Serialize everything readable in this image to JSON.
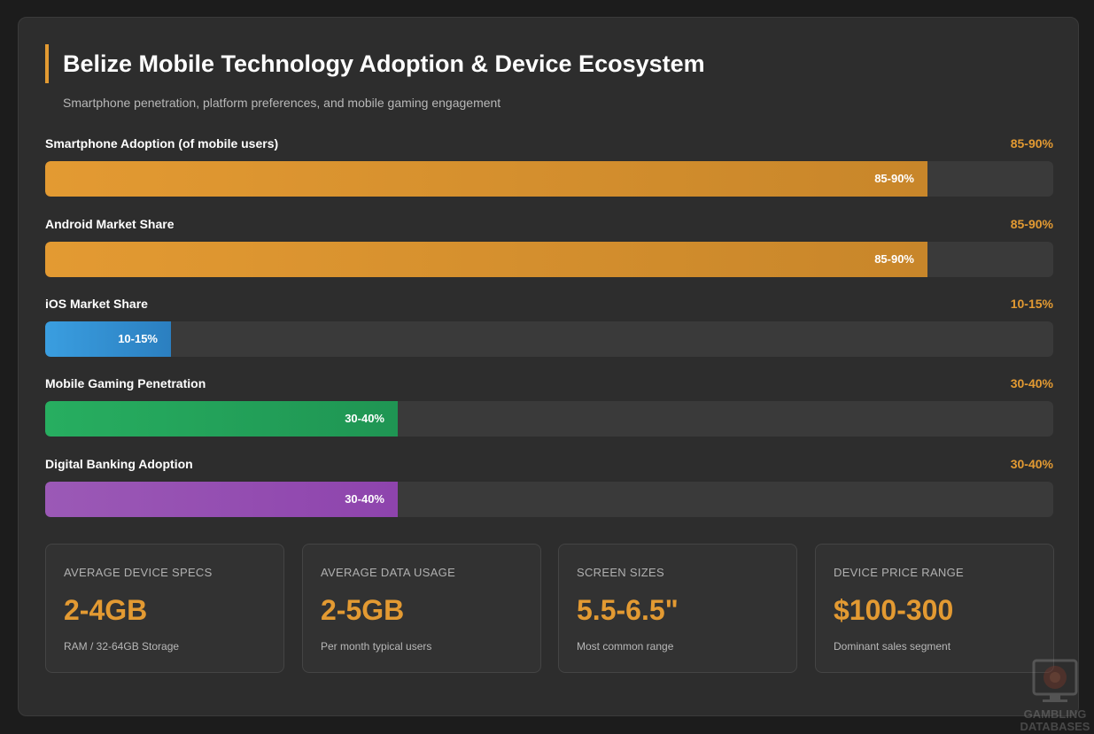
{
  "title": "Belize Mobile Technology Adoption & Device Ecosystem",
  "subtitle": "Smartphone penetration, platform preferences, and mobile gaming engagement",
  "chart_data": {
    "type": "bar",
    "orientation": "horizontal",
    "xlim": [
      0,
      100
    ],
    "unit": "%",
    "categories": [
      "Smartphone Adoption (of mobile users)",
      "Android Market Share",
      "iOS Market Share",
      "Mobile Gaming Penetration",
      "Digital Banking Adoption"
    ],
    "labels": [
      "85-90%",
      "85-90%",
      "10-15%",
      "30-40%",
      "30-40%"
    ],
    "values": [
      87.5,
      87.5,
      12.5,
      35,
      35
    ],
    "colors": [
      [
        "#e39a32",
        "#c8862a"
      ],
      [
        "#e39a32",
        "#c8862a"
      ],
      [
        "#3a9ee0",
        "#2b7fc0"
      ],
      [
        "#27ae60",
        "#1f9553"
      ],
      [
        "#9b59b6",
        "#8e44ad"
      ]
    ]
  },
  "stats": [
    {
      "label": "AVERAGE DEVICE SPECS",
      "value": "2-4GB",
      "sub": "RAM / 32-64GB Storage"
    },
    {
      "label": "AVERAGE DATA USAGE",
      "value": "2-5GB",
      "sub": "Per month typical users"
    },
    {
      "label": "SCREEN SIZES",
      "value": "5.5-6.5\"",
      "sub": "Most common range"
    },
    {
      "label": "DEVICE PRICE RANGE",
      "value": "$100-300",
      "sub": "Dominant sales segment"
    }
  ],
  "watermark": {
    "line1": "GAMBLING",
    "line2": "DATABASES",
    "icon": "roulette-monitor-icon"
  },
  "accent": "#e39a32"
}
